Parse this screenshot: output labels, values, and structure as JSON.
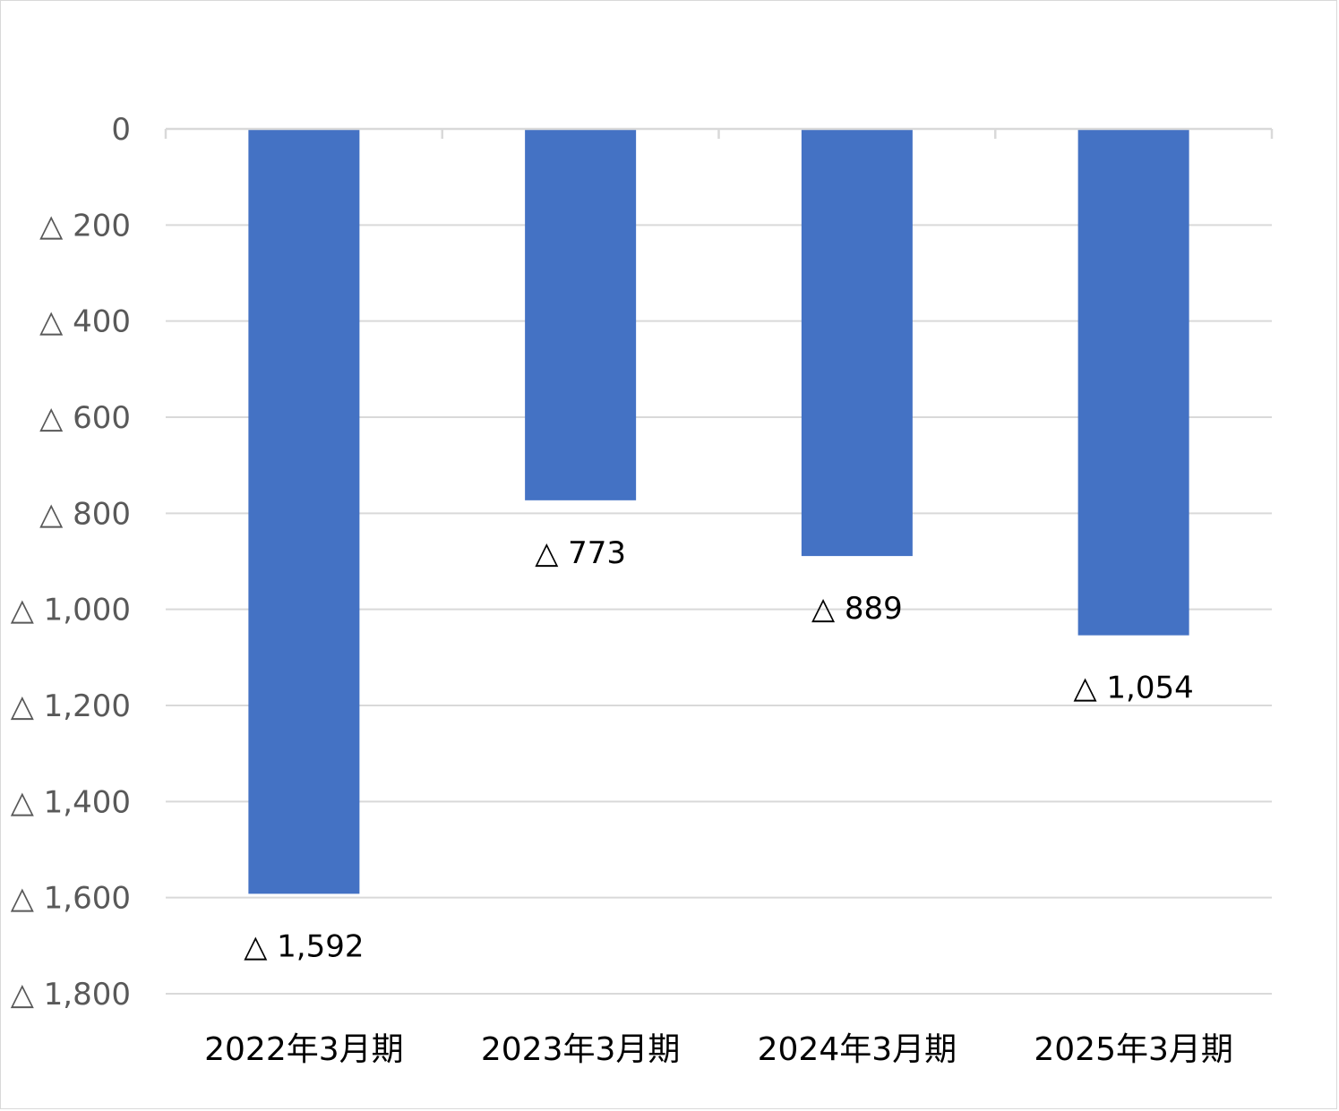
{
  "chart_data": {
    "type": "bar",
    "categories": [
      "2022年3月期",
      "2023年3月期",
      "2024年3月期",
      "2025年3月期"
    ],
    "values": [
      -1592,
      -773,
      -889,
      -1054
    ],
    "data_labels": [
      "△ 1,592",
      "△ 773",
      "△ 889",
      "△ 1,054"
    ],
    "ylim": [
      -1800,
      0
    ],
    "yticks": [
      0,
      -200,
      -400,
      -600,
      -800,
      -1000,
      -1200,
      -1400,
      -1600,
      -1800
    ],
    "ytick_labels": [
      "0",
      "△ 200",
      "△ 400",
      "△ 600",
      "△ 800",
      "△ 1,000",
      "△ 1,200",
      "△ 1,400",
      "△ 1,600",
      "△ 1,800"
    ],
    "grid": true,
    "legend": "none",
    "colors": {
      "bar": "#4472C4",
      "grid": "#d9d9d9",
      "axis_text": "#595959"
    }
  }
}
